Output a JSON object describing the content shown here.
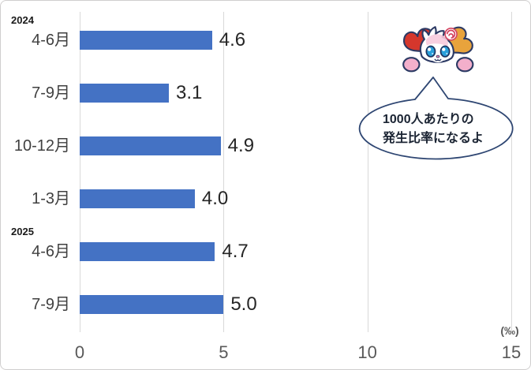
{
  "chart_data": {
    "type": "bar",
    "orientation": "horizontal",
    "title": "",
    "categories": [
      "4-6月",
      "7-9月",
      "10-12月",
      "1-3月",
      "4-6月",
      "7-9月"
    ],
    "year_groups": [
      {
        "label": "2024",
        "row": 0
      },
      {
        "label": "2025",
        "row": 4
      }
    ],
    "values": [
      4.6,
      3.1,
      4.9,
      4.0,
      4.7,
      5.0
    ],
    "value_labels": [
      "4.6",
      "3.1",
      "4.9",
      "4.0",
      "4.7",
      "5.0"
    ],
    "xlim": [
      0,
      15
    ],
    "x_ticks": [
      0,
      5,
      10,
      15
    ],
    "x_unit": "(‰)",
    "grid": true,
    "legend": false,
    "bar_color": "#4472C4",
    "gridline_color": "#D9D9D9"
  },
  "annotation_bubble": {
    "line1": "1000人あたりの",
    "line2": "発生比率になるよ",
    "outline_color": "#2E4672"
  },
  "mascot": {
    "name": "fairy-cat-mascot",
    "colors": {
      "left_ear": "#D5372C",
      "right_ear": "#E8A33C",
      "body": "#FFFFFF",
      "face_blush": "#F7CBDD",
      "eyes": "#2AA0DB",
      "paws": "#F3AFCB",
      "candy": "#D4415E",
      "outline": "#2C3A64"
    }
  }
}
